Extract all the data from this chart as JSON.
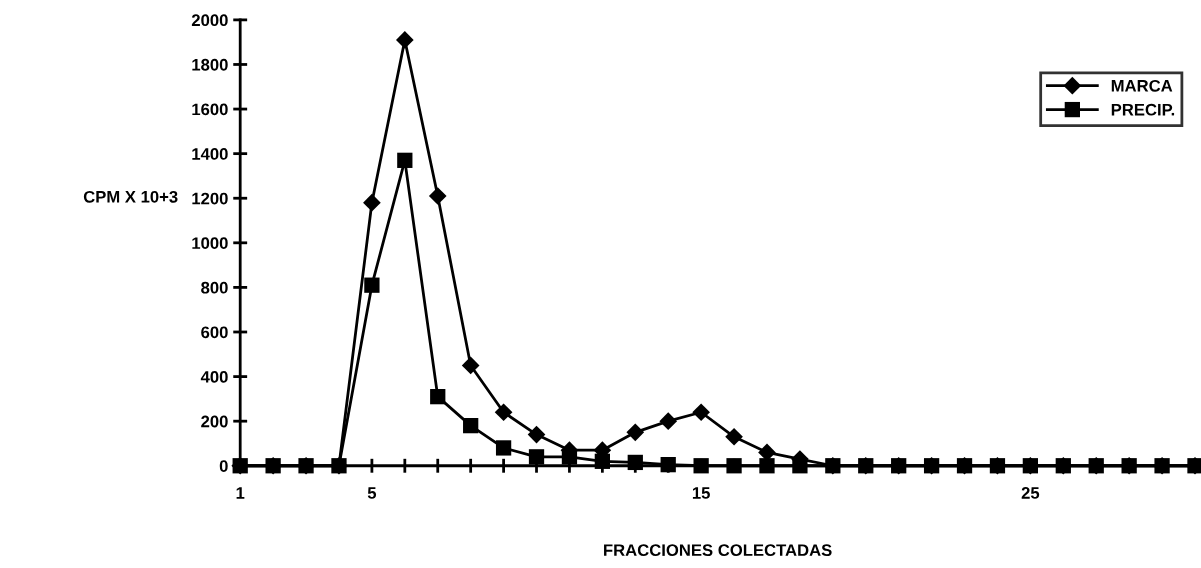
{
  "chart_data": {
    "type": "line",
    "xlabel": "FRACCIONES COLECTADAS",
    "ylabel": "CPM X 10+3",
    "categories": [
      "1",
      null,
      null,
      null,
      "5",
      null,
      null,
      null,
      null,
      null,
      null,
      null,
      null,
      null,
      "15",
      null,
      null,
      null,
      null,
      null,
      null,
      null,
      null,
      null,
      "25",
      null,
      null,
      null,
      null,
      null
    ],
    "series": [
      {
        "name": "MARCA",
        "color": "#000000",
        "marker": "diamond",
        "values": [
          0,
          0,
          0,
          0,
          1180,
          1910,
          1210,
          450,
          240,
          140,
          70,
          70,
          150,
          200,
          240,
          130,
          60,
          30,
          0,
          0,
          0,
          0,
          0,
          0,
          0,
          0,
          0,
          0,
          0,
          0
        ]
      },
      {
        "name": "PRECIP.",
        "color": "#000000",
        "marker": "square",
        "values": [
          0,
          0,
          0,
          0,
          810,
          1370,
          310,
          180,
          80,
          40,
          40,
          20,
          15,
          5,
          0,
          0,
          0,
          0,
          0,
          0,
          0,
          0,
          0,
          0,
          0,
          0,
          0,
          0,
          0,
          0
        ]
      }
    ],
    "ylim": [
      0,
      2000
    ],
    "yticks": [
      0,
      200,
      400,
      600,
      800,
      1000,
      1200,
      1400,
      1600,
      1800,
      2000
    ],
    "grid": false,
    "legend": "top right",
    "line_style": "solid"
  }
}
